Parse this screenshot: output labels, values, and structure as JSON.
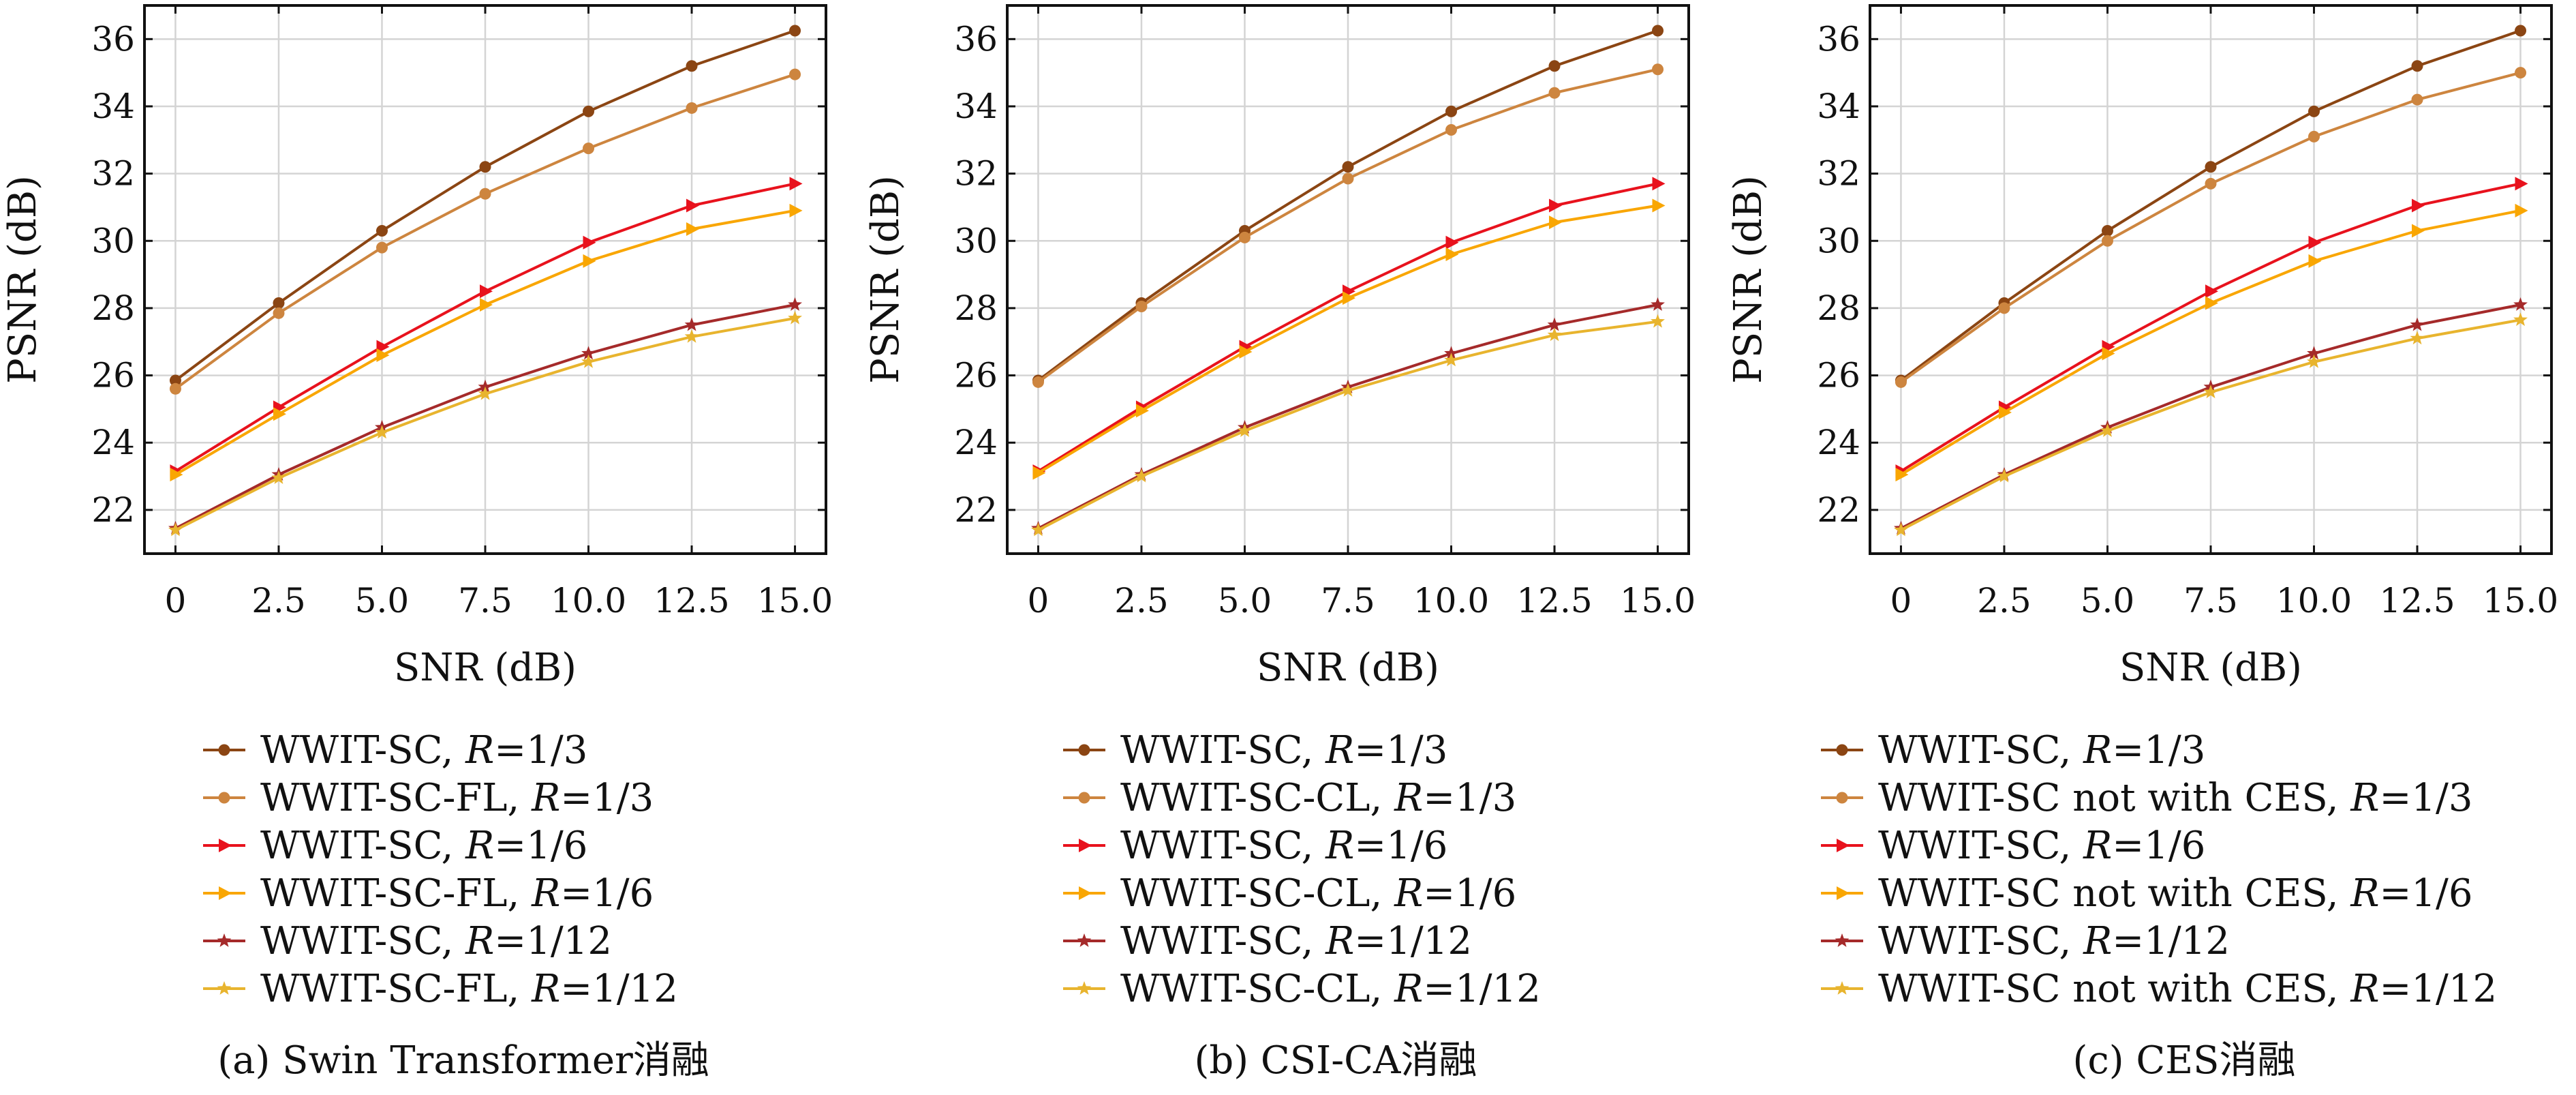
{
  "chart_data": [
    {
      "type": "line",
      "caption": "(a) Swin Transformer消融",
      "xlabel": "SNR (dB)",
      "ylabel": "PSNR (dB)",
      "x": [
        0,
        2.5,
        5.0,
        7.5,
        10.0,
        12.5,
        15.0
      ],
      "x_tick_labels": [
        "0",
        "2.5",
        "5.0",
        "7.5",
        "10.0",
        "12.5",
        "15.0"
      ],
      "xlim": [
        -0.75,
        15.75
      ],
      "ylim": [
        20.7,
        37.0
      ],
      "y_ticks": [
        22,
        24,
        26,
        28,
        30,
        32,
        34,
        36
      ],
      "grid": true,
      "legend_position": "below",
      "series": [
        {
          "label_main": "WWIT-SC, ",
          "label_var": "R",
          "label_tail": "=1/3",
          "color": "#8B4513",
          "marker": "circle",
          "values": [
            25.85,
            28.15,
            30.3,
            32.2,
            33.85,
            35.2,
            36.25
          ]
        },
        {
          "label_main": "WWIT-SC-FL, ",
          "label_var": "R",
          "label_tail": "=1/3",
          "color": "#CD853F",
          "marker": "circle",
          "values": [
            25.6,
            27.85,
            29.8,
            31.4,
            32.75,
            33.95,
            34.95
          ]
        },
        {
          "label_main": "WWIT-SC, ",
          "label_var": "R",
          "label_tail": "=1/6",
          "color": "#E8121D",
          "marker": "triangle-right",
          "values": [
            23.15,
            25.05,
            26.85,
            28.5,
            29.95,
            31.05,
            31.7
          ]
        },
        {
          "label_main": "WWIT-SC-FL, ",
          "label_var": "R",
          "label_tail": "=1/6",
          "color": "#F9A602",
          "marker": "triangle-right",
          "values": [
            23.05,
            24.85,
            26.6,
            28.1,
            29.4,
            30.35,
            30.9
          ]
        },
        {
          "label_main": "WWIT-SC, ",
          "label_var": "R",
          "label_tail": "=1/12",
          "color": "#A52A2A",
          "marker": "star",
          "values": [
            21.45,
            23.05,
            24.45,
            25.65,
            26.65,
            27.5,
            28.1
          ]
        },
        {
          "label_main": "WWIT-SC-FL, ",
          "label_var": "R",
          "label_tail": "=1/12",
          "color": "#E8B42E",
          "marker": "star",
          "values": [
            21.4,
            22.95,
            24.3,
            25.45,
            26.4,
            27.15,
            27.7
          ]
        }
      ]
    },
    {
      "type": "line",
      "caption": "(b) CSI-CA消融",
      "xlabel": "SNR (dB)",
      "ylabel": "PSNR (dB)",
      "x": [
        0,
        2.5,
        5.0,
        7.5,
        10.0,
        12.5,
        15.0
      ],
      "x_tick_labels": [
        "0",
        "2.5",
        "5.0",
        "7.5",
        "10.0",
        "12.5",
        "15.0"
      ],
      "xlim": [
        -0.75,
        15.75
      ],
      "ylim": [
        20.7,
        37.0
      ],
      "y_ticks": [
        22,
        24,
        26,
        28,
        30,
        32,
        34,
        36
      ],
      "grid": true,
      "legend_position": "below",
      "series": [
        {
          "label_main": "WWIT-SC, ",
          "label_var": "R",
          "label_tail": "=1/3",
          "color": "#8B4513",
          "marker": "circle",
          "values": [
            25.85,
            28.15,
            30.3,
            32.2,
            33.85,
            35.2,
            36.25
          ]
        },
        {
          "label_main": "WWIT-SC-CL, ",
          "label_var": "R",
          "label_tail": "=1/3",
          "color": "#CD853F",
          "marker": "circle",
          "values": [
            25.8,
            28.05,
            30.1,
            31.85,
            33.3,
            34.4,
            35.1
          ]
        },
        {
          "label_main": "WWIT-SC, ",
          "label_var": "R",
          "label_tail": "=1/6",
          "color": "#E8121D",
          "marker": "triangle-right",
          "values": [
            23.15,
            25.05,
            26.85,
            28.5,
            29.95,
            31.05,
            31.7
          ]
        },
        {
          "label_main": "WWIT-SC-CL, ",
          "label_var": "R",
          "label_tail": "=1/6",
          "color": "#F9A602",
          "marker": "triangle-right",
          "values": [
            23.1,
            24.95,
            26.7,
            28.3,
            29.6,
            30.55,
            31.05
          ]
        },
        {
          "label_main": "WWIT-SC, ",
          "label_var": "R",
          "label_tail": "=1/12",
          "color": "#A52A2A",
          "marker": "star",
          "values": [
            21.45,
            23.05,
            24.45,
            25.65,
            26.65,
            27.5,
            28.1
          ]
        },
        {
          "label_main": "WWIT-SC-CL, ",
          "label_var": "R",
          "label_tail": "=1/12",
          "color": "#E8B42E",
          "marker": "star",
          "values": [
            21.4,
            23.0,
            24.35,
            25.55,
            26.45,
            27.2,
            27.6
          ]
        }
      ]
    },
    {
      "type": "line",
      "caption": "(c) CES消融",
      "xlabel": "SNR (dB)",
      "ylabel": "PSNR (dB)",
      "x": [
        0,
        2.5,
        5.0,
        7.5,
        10.0,
        12.5,
        15.0
      ],
      "x_tick_labels": [
        "0",
        "2.5",
        "5.0",
        "7.5",
        "10.0",
        "12.5",
        "15.0"
      ],
      "xlim": [
        -0.75,
        15.75
      ],
      "ylim": [
        20.7,
        37.0
      ],
      "y_ticks": [
        22,
        24,
        26,
        28,
        30,
        32,
        34,
        36
      ],
      "grid": true,
      "legend_position": "below",
      "series": [
        {
          "label_main": "WWIT-SC, ",
          "label_var": "R",
          "label_tail": "=1/3",
          "color": "#8B4513",
          "marker": "circle",
          "values": [
            25.85,
            28.15,
            30.3,
            32.2,
            33.85,
            35.2,
            36.25
          ]
        },
        {
          "label_main": "WWIT-SC not with CES, ",
          "label_var": "R",
          "label_tail": "=1/3",
          "color": "#CD853F",
          "marker": "circle",
          "values": [
            25.8,
            28.0,
            30.0,
            31.7,
            33.1,
            34.2,
            35.0
          ]
        },
        {
          "label_main": "WWIT-SC, ",
          "label_var": "R",
          "label_tail": "=1/6",
          "color": "#E8121D",
          "marker": "triangle-right",
          "values": [
            23.15,
            25.05,
            26.85,
            28.5,
            29.95,
            31.05,
            31.7
          ]
        },
        {
          "label_main": "WWIT-SC not with CES, ",
          "label_var": "R",
          "label_tail": "=1/6",
          "color": "#F9A602",
          "marker": "triangle-right",
          "values": [
            23.05,
            24.9,
            26.65,
            28.15,
            29.4,
            30.3,
            30.9
          ]
        },
        {
          "label_main": "WWIT-SC, ",
          "label_var": "R",
          "label_tail": "=1/12",
          "color": "#A52A2A",
          "marker": "star",
          "values": [
            21.45,
            23.05,
            24.45,
            25.65,
            26.65,
            27.5,
            28.1
          ]
        },
        {
          "label_main": "WWIT-SC not with CES, ",
          "label_var": "R",
          "label_tail": "=1/12",
          "color": "#E8B42E",
          "marker": "star",
          "values": [
            21.4,
            23.0,
            24.35,
            25.5,
            26.4,
            27.1,
            27.65
          ]
        }
      ]
    }
  ]
}
